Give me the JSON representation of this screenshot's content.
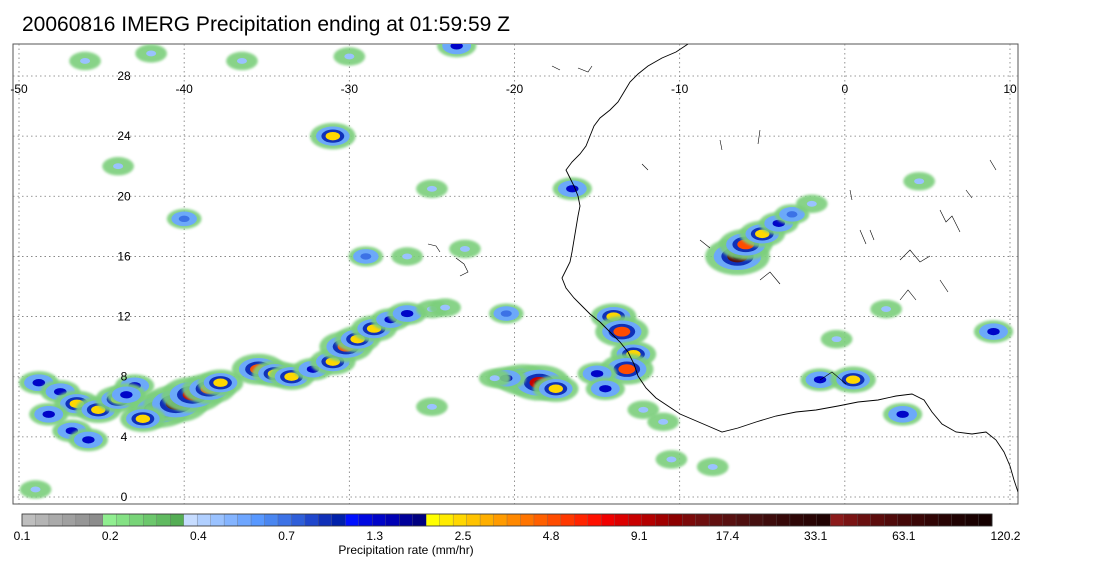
{
  "title": "20060816 IMERG Precipitation ending at 01:59:59 Z",
  "map": {
    "lon_range": [
      -50,
      10
    ],
    "lat_range": [
      -0.5,
      30
    ],
    "lon_ticks": [
      -50,
      -40,
      -30,
      -20,
      -10,
      0,
      10
    ],
    "lon_tick_labels": [
      "-50",
      "-40",
      "-30",
      "-20",
      "-10",
      "0",
      "10"
    ],
    "lat_ticks": [
      0,
      4,
      8,
      12,
      16,
      20,
      24,
      28
    ],
    "lat_tick_labels": [
      "0",
      "4",
      "8",
      "12",
      "16",
      "20",
      "24",
      "28"
    ],
    "gridlines": "dotted",
    "coastline_color": "#000000"
  },
  "colorbar": {
    "title": "Precipitation rate (mm/hr)",
    "tick_labels": [
      "0.1",
      "0.2",
      "0.4",
      "0.7",
      "1.3",
      "2.5",
      "4.8",
      "9.1",
      "17.4",
      "33.1",
      "63.1",
      "120.2"
    ],
    "colors": [
      "#bebebe",
      "#b4b4b4",
      "#aaaaaa",
      "#a0a0a0",
      "#969696",
      "#8c8c8c",
      "#90ee90",
      "#84e184",
      "#78d478",
      "#6cc76c",
      "#60ba60",
      "#54ad54",
      "#c6dcff",
      "#b0cfff",
      "#9ac2ff",
      "#84b4ff",
      "#6ea6ff",
      "#5898ff",
      "#4a86f0",
      "#3c72e6",
      "#2e5ed9",
      "#1f46cc",
      "#1030b8",
      "#0020aa",
      "#0010ff",
      "#0008e0",
      "#0004c8",
      "#0000b4",
      "#00009a",
      "#000080",
      "#ffff00",
      "#ffeb00",
      "#ffd700",
      "#ffc300",
      "#ffaf00",
      "#ff9b00",
      "#ff8800",
      "#ff7400",
      "#ff6000",
      "#ff4c00",
      "#ff3800",
      "#ff2400",
      "#ff1000",
      "#f00000",
      "#dc0000",
      "#c80000",
      "#b40000",
      "#a00000",
      "#8c0000",
      "#7c0a0a",
      "#6e0f0f",
      "#621010",
      "#581010",
      "#4e0f0f",
      "#461010",
      "#3e0c0c",
      "#360808",
      "#2e0606",
      "#280404",
      "#200202",
      "#8b1a1a",
      "#7a1414",
      "#6a1010",
      "#5c0c0c",
      "#500a0a",
      "#440808",
      "#3a0606",
      "#300404",
      "#280303",
      "#200202",
      "#1a0101",
      "#140000"
    ]
  },
  "precip_clusters": [
    {
      "name": "band-west-1",
      "cells": [
        [
          -48.8,
          7.6,
          1.4
        ],
        [
          -47.5,
          7.0,
          1.4
        ],
        [
          -46.5,
          6.2,
          2.5
        ],
        [
          -45.2,
          5.8,
          2.5
        ],
        [
          -44.0,
          6.5,
          2.5
        ],
        [
          -43.0,
          7.4,
          1.3
        ],
        [
          -48.2,
          5.5,
          1.3
        ],
        [
          -46.8,
          4.4,
          1.3
        ],
        [
          -45.8,
          3.8,
          1.3
        ]
      ]
    },
    {
      "name": "band-west-core",
      "cells": [
        [
          -41.5,
          5.8,
          9.1
        ],
        [
          -40.5,
          6.2,
          17.4
        ],
        [
          -39.5,
          6.8,
          9.1
        ],
        [
          -38.5,
          7.2,
          4.8
        ],
        [
          -42.5,
          5.2,
          2.5
        ],
        [
          -37.8,
          7.6,
          2.5
        ],
        [
          -43.5,
          6.8,
          1.3
        ]
      ]
    },
    {
      "name": "band-mid",
      "cells": [
        [
          -35.5,
          8.5,
          4.8
        ],
        [
          -34.5,
          8.2,
          2.5
        ],
        [
          -33.5,
          8.0,
          2.5
        ],
        [
          -32.2,
          8.5,
          1.3
        ],
        [
          -31.0,
          9.0,
          2.5
        ],
        [
          -30.2,
          10.0,
          4.8
        ],
        [
          -29.5,
          10.5,
          2.5
        ],
        [
          -28.5,
          11.2,
          2.5
        ],
        [
          -27.5,
          11.8,
          1.3
        ],
        [
          -26.5,
          12.2,
          1.3
        ],
        [
          -25.0,
          12.5,
          0.4
        ],
        [
          -24.2,
          12.6,
          0.4
        ]
      ]
    },
    {
      "name": "band-east",
      "cells": [
        [
          -19.5,
          7.8,
          4.8
        ],
        [
          -18.5,
          7.6,
          9.1
        ],
        [
          -17.5,
          7.2,
          2.5
        ],
        [
          -20.5,
          7.9,
          1.3
        ],
        [
          -21.2,
          7.9,
          0.4
        ]
      ]
    },
    {
      "name": "coast-cells",
      "cells": [
        [
          -14.0,
          12.0,
          2.5
        ],
        [
          -13.5,
          11.0,
          4.8
        ],
        [
          -12.8,
          9.5,
          2.5
        ],
        [
          -13.2,
          8.5,
          4.8
        ],
        [
          -15.0,
          8.2,
          1.3
        ],
        [
          -14.5,
          7.2,
          1.3
        ],
        [
          -12.2,
          5.8,
          0.4
        ],
        [
          -11.0,
          5.0,
          0.4
        ]
      ]
    },
    {
      "name": "sahel-cell",
      "cells": [
        [
          -6.5,
          16.0,
          17.4
        ],
        [
          -6.0,
          16.8,
          4.8
        ],
        [
          -5.0,
          17.5,
          2.5
        ],
        [
          -4.0,
          18.2,
          1.3
        ],
        [
          -3.2,
          18.8,
          0.7
        ],
        [
          -2.0,
          19.5,
          0.4
        ]
      ]
    },
    {
      "name": "scattered",
      "cells": [
        [
          -40.0,
          18.5,
          0.7
        ],
        [
          -31.0,
          24.0,
          2.5
        ],
        [
          -25.0,
          20.5,
          0.4
        ],
        [
          -16.5,
          20.5,
          1.3
        ],
        [
          -20.5,
          12.2,
          0.7
        ],
        [
          -29.0,
          16.0,
          0.7
        ],
        [
          -26.5,
          16.0,
          0.4
        ],
        [
          -23.0,
          16.5,
          0.4
        ],
        [
          -1.5,
          7.8,
          1.3
        ],
        [
          0.5,
          7.8,
          2.5
        ],
        [
          3.5,
          5.5,
          1.3
        ],
        [
          -46.0,
          29.0,
          0.4
        ],
        [
          -42.0,
          29.5,
          0.4
        ],
        [
          -30.0,
          29.3,
          0.4
        ],
        [
          -36.5,
          29.0,
          0.4
        ],
        [
          -23.5,
          30.0,
          1.3
        ],
        [
          -8.0,
          2.0,
          0.4
        ],
        [
          -49.0,
          0.5,
          0.4
        ],
        [
          -10.5,
          2.5,
          0.4
        ],
        [
          9.0,
          11.0,
          1.3
        ],
        [
          -0.5,
          10.5,
          0.4
        ],
        [
          2.5,
          12.5,
          0.4
        ],
        [
          4.5,
          21.0,
          0.4
        ],
        [
          -44.0,
          22.0,
          0.4
        ],
        [
          -25.0,
          6.0,
          0.4
        ]
      ]
    }
  ]
}
